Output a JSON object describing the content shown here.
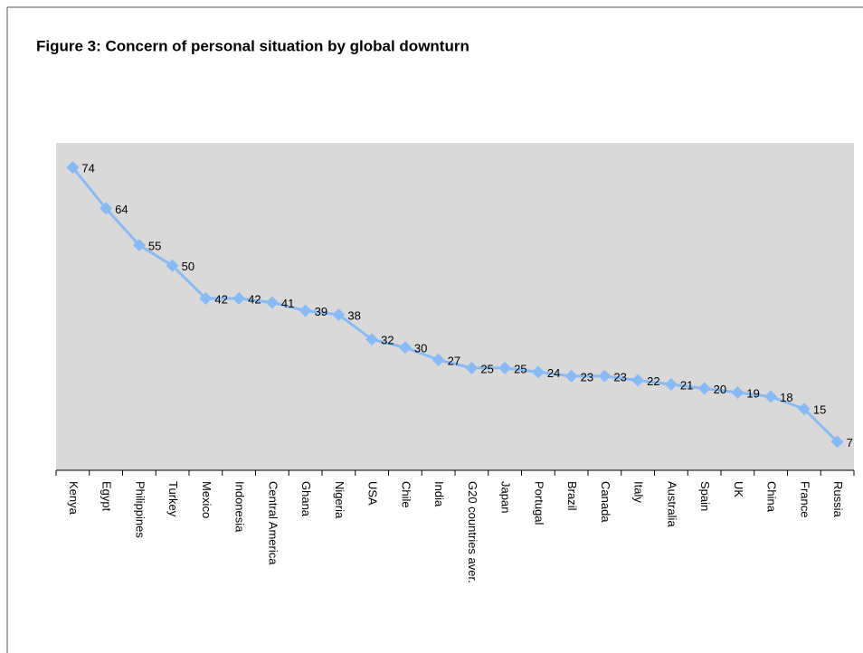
{
  "chart_data": {
    "type": "line",
    "title": "Figure 3: Concern of personal situation by global downturn",
    "categories": [
      "Kenya",
      "Egypt",
      "Philippines",
      "Turkey",
      "Mexico",
      "Indonesia",
      "Central America",
      "Ghana",
      "Nigeria",
      "USA",
      "Chile",
      "India",
      "G20 countries aver.",
      "Japan",
      "Portugal",
      "Brazil",
      "Canada",
      "Italy",
      "Australia",
      "Spain",
      "UK",
      "China",
      "France",
      "Russia"
    ],
    "values": [
      74,
      64,
      55,
      50,
      42,
      42,
      41,
      39,
      38,
      32,
      30,
      27,
      25,
      25,
      24,
      23,
      23,
      22,
      21,
      20,
      19,
      18,
      15,
      7
    ],
    "color": "#88bbf5",
    "ylim": [
      0,
      80
    ]
  }
}
